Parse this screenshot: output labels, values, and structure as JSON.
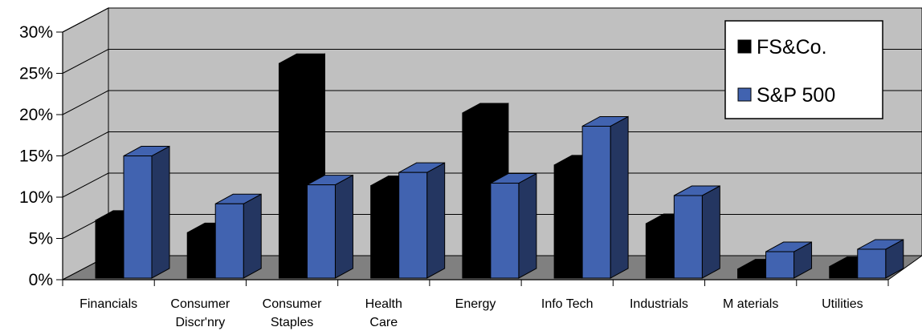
{
  "chart_data": {
    "type": "bar",
    "style": "3d-clustered-column",
    "categories": [
      [
        "Financials"
      ],
      [
        "Consumer",
        "Discr'nry"
      ],
      [
        "Consumer",
        "Staples"
      ],
      [
        "Health",
        "Care"
      ],
      [
        "Energy"
      ],
      [
        "Info Tech"
      ],
      [
        "Industrials"
      ],
      [
        "M aterials"
      ],
      [
        "Utilities"
      ]
    ],
    "series": [
      {
        "name": "FS&Co.",
        "color": "#000000",
        "values": [
          7.0,
          5.5,
          26.0,
          11.2,
          20.0,
          13.7,
          6.6,
          1.1,
          1.4
        ]
      },
      {
        "name": "S&P 500",
        "color": "#4163b0",
        "values": [
          14.8,
          9.0,
          11.3,
          12.8,
          11.5,
          18.4,
          10.0,
          3.2,
          3.5
        ]
      }
    ],
    "y_ticks": [
      "0%",
      "5%",
      "10%",
      "15%",
      "20%",
      "25%",
      "30%"
    ],
    "ylim": [
      0,
      30
    ],
    "grid": true,
    "legend_position": "top-right",
    "wall_color": "#c0c0c0",
    "floor_color": "#808080"
  }
}
